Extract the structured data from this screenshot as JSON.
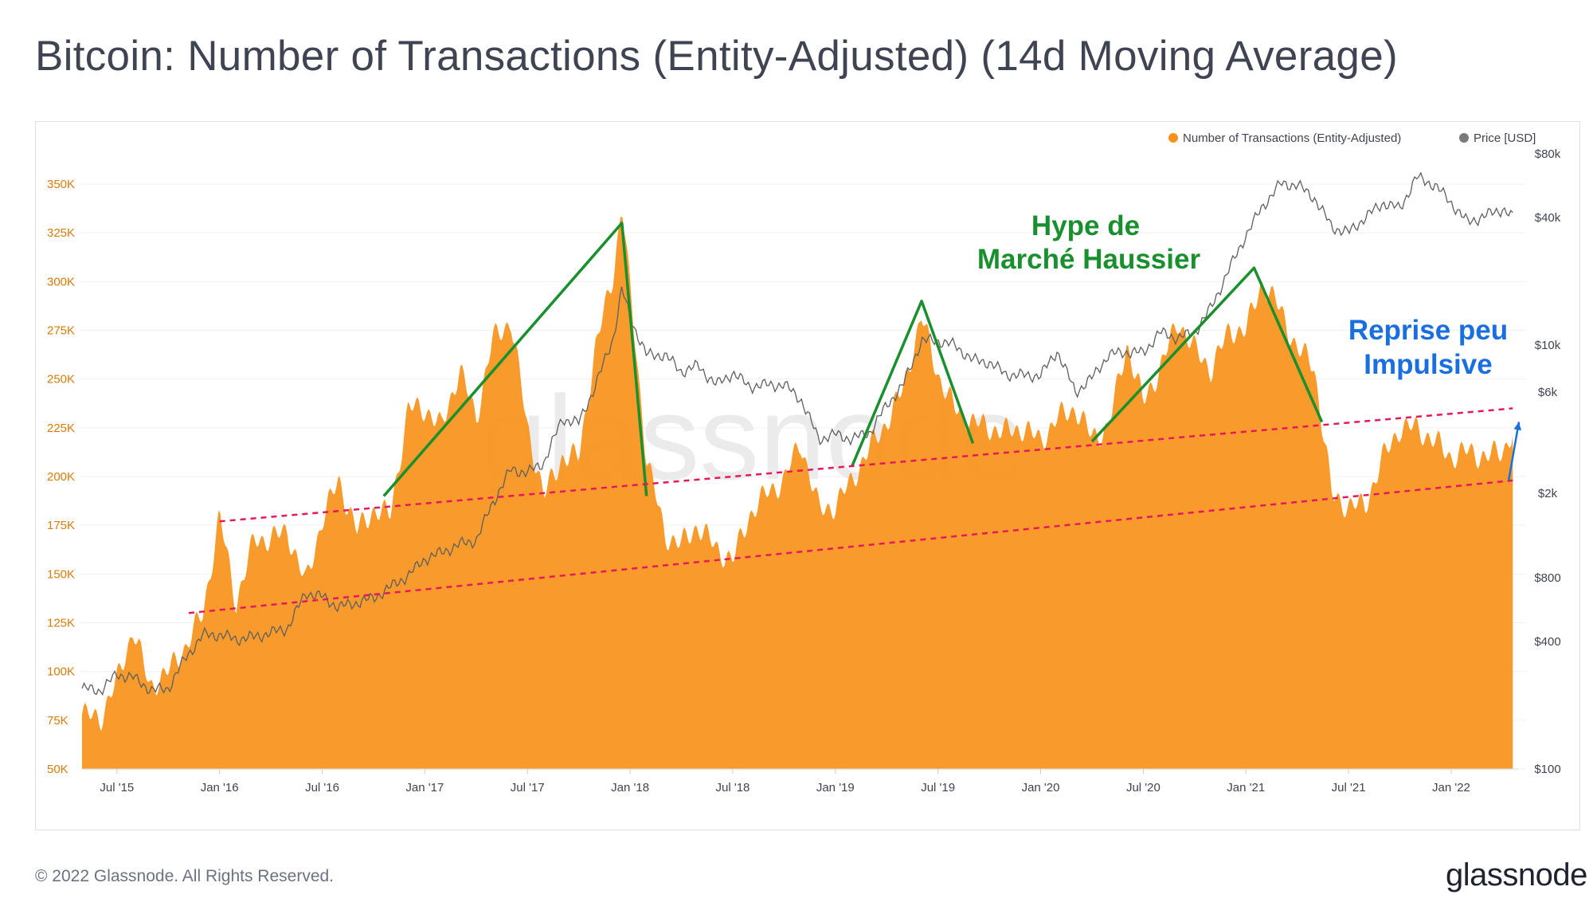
{
  "title": "Bitcoin: Number of Transactions (Entity-Adjusted) (14d Moving Average)",
  "footer": {
    "copyright": "© 2022 Glassnode. All Rights Reserved.",
    "brand": "glassnode"
  },
  "watermark": "glassnode",
  "colors": {
    "tx": "#f7931a",
    "price": "#6e6e6e",
    "trend_green": "#1a8f2d",
    "dashed": "#e8175d",
    "annotation_blue": "#1a6fe0",
    "axis_left": "#d97b0a"
  },
  "chart_data": {
    "type": "area",
    "title": "Bitcoin: Number of Transactions (Entity-Adjusted) (14d Moving Average)",
    "x_range": [
      "2015-05",
      "2022-05"
    ],
    "x_ticks": [
      "Jul '15",
      "Jan '16",
      "Jul '16",
      "Jan '17",
      "Jul '17",
      "Jan '18",
      "Jul '18",
      "Jan '19",
      "Jul '19",
      "Jan '20",
      "Jul '20",
      "Jan '21",
      "Jul '21",
      "Jan '22"
    ],
    "y_left": {
      "label": "Number of Transactions (Entity-Adjusted)",
      "min": 50000,
      "max": 350000,
      "ticks": [
        "50K",
        "75K",
        "100K",
        "125K",
        "150K",
        "175K",
        "200K",
        "225K",
        "250K",
        "275K",
        "300K",
        "325K",
        "350K"
      ]
    },
    "y_right": {
      "label": "Price [USD]",
      "scale": "log",
      "min": 100,
      "max": 80000,
      "ticks": [
        "$100",
        "$400",
        "$800",
        "$2k",
        "$6k",
        "$10k",
        "$40k",
        "$80k"
      ]
    },
    "legend": [
      {
        "name": "Number of Transactions (Entity-Adjusted)"
      },
      {
        "name": "Price [USD]"
      }
    ],
    "series": [
      {
        "name": "Number of Transactions (Entity-Adjusted)",
        "points": [
          [
            2015.33,
            78000
          ],
          [
            2015.42,
            76000
          ],
          [
            2015.5,
            95000
          ],
          [
            2015.58,
            122000
          ],
          [
            2015.66,
            92000
          ],
          [
            2015.75,
            100000
          ],
          [
            2015.83,
            112000
          ],
          [
            2015.92,
            130000
          ],
          [
            2016.0,
            180000
          ],
          [
            2016.08,
            135000
          ],
          [
            2016.17,
            168000
          ],
          [
            2016.25,
            168000
          ],
          [
            2016.33,
            172000
          ],
          [
            2016.42,
            145000
          ],
          [
            2016.5,
            178000
          ],
          [
            2016.58,
            198000
          ],
          [
            2016.67,
            172000
          ],
          [
            2016.75,
            183000
          ],
          [
            2016.83,
            180000
          ],
          [
            2016.92,
            235000
          ],
          [
            2017.0,
            235000
          ],
          [
            2017.08,
            225000
          ],
          [
            2017.17,
            255000
          ],
          [
            2017.25,
            230000
          ],
          [
            2017.33,
            270000
          ],
          [
            2017.42,
            280000
          ],
          [
            2017.5,
            225000
          ],
          [
            2017.58,
            190000
          ],
          [
            2017.67,
            210000
          ],
          [
            2017.75,
            210000
          ],
          [
            2017.83,
            265000
          ],
          [
            2017.92,
            305000
          ],
          [
            2017.96,
            340000
          ],
          [
            2018.0,
            295000
          ],
          [
            2018.08,
            210000
          ],
          [
            2018.17,
            170000
          ],
          [
            2018.25,
            165000
          ],
          [
            2018.33,
            175000
          ],
          [
            2018.42,
            163000
          ],
          [
            2018.5,
            157000
          ],
          [
            2018.58,
            180000
          ],
          [
            2018.67,
            192000
          ],
          [
            2018.75,
            198000
          ],
          [
            2018.83,
            218000
          ],
          [
            2018.92,
            183000
          ],
          [
            2019.0,
            185000
          ],
          [
            2019.08,
            198000
          ],
          [
            2019.17,
            215000
          ],
          [
            2019.25,
            228000
          ],
          [
            2019.33,
            245000
          ],
          [
            2019.42,
            282000
          ],
          [
            2019.5,
            252000
          ],
          [
            2019.58,
            235000
          ],
          [
            2019.67,
            228000
          ],
          [
            2019.75,
            225000
          ],
          [
            2019.83,
            223000
          ],
          [
            2019.92,
            225000
          ],
          [
            2020.0,
            218000
          ],
          [
            2020.08,
            230000
          ],
          [
            2020.17,
            235000
          ],
          [
            2020.25,
            220000
          ],
          [
            2020.33,
            225000
          ],
          [
            2020.42,
            268000
          ],
          [
            2020.5,
            238000
          ],
          [
            2020.58,
            255000
          ],
          [
            2020.67,
            280000
          ],
          [
            2020.75,
            265000
          ],
          [
            2020.83,
            255000
          ],
          [
            2020.92,
            275000
          ],
          [
            2021.0,
            275000
          ],
          [
            2021.08,
            300000
          ],
          [
            2021.17,
            285000
          ],
          [
            2021.25,
            265000
          ],
          [
            2021.33,
            258000
          ],
          [
            2021.42,
            190000
          ],
          [
            2021.5,
            185000
          ],
          [
            2021.58,
            185000
          ],
          [
            2021.67,
            210000
          ],
          [
            2021.75,
            225000
          ],
          [
            2021.83,
            225000
          ],
          [
            2021.92,
            218000
          ],
          [
            2022.0,
            210000
          ],
          [
            2022.08,
            213000
          ],
          [
            2022.17,
            210000
          ],
          [
            2022.25,
            213000
          ],
          [
            2022.3,
            223000
          ]
        ]
      },
      {
        "name": "Price [USD]",
        "points": [
          [
            2015.33,
            240
          ],
          [
            2015.42,
            235
          ],
          [
            2015.5,
            280
          ],
          [
            2015.58,
            270
          ],
          [
            2015.67,
            235
          ],
          [
            2015.75,
            240
          ],
          [
            2015.83,
            330
          ],
          [
            2015.92,
            430
          ],
          [
            2016.0,
            430
          ],
          [
            2016.08,
            410
          ],
          [
            2016.17,
            420
          ],
          [
            2016.25,
            440
          ],
          [
            2016.33,
            460
          ],
          [
            2016.42,
            680
          ],
          [
            2016.5,
            650
          ],
          [
            2016.58,
            580
          ],
          [
            2016.67,
            610
          ],
          [
            2016.75,
            640
          ],
          [
            2016.83,
            720
          ],
          [
            2016.92,
            820
          ],
          [
            2017.0,
            980
          ],
          [
            2017.08,
            1050
          ],
          [
            2017.17,
            1150
          ],
          [
            2017.25,
            1200
          ],
          [
            2017.33,
            1800
          ],
          [
            2017.42,
            2600
          ],
          [
            2017.5,
            2500
          ],
          [
            2017.58,
            2800
          ],
          [
            2017.67,
            4500
          ],
          [
            2017.75,
            4300
          ],
          [
            2017.83,
            6400
          ],
          [
            2017.92,
            11000
          ],
          [
            2017.96,
            18500
          ],
          [
            2018.0,
            13500
          ],
          [
            2018.08,
            9000
          ],
          [
            2018.17,
            9000
          ],
          [
            2018.25,
            7500
          ],
          [
            2018.33,
            8000
          ],
          [
            2018.42,
            6500
          ],
          [
            2018.5,
            7400
          ],
          [
            2018.58,
            6400
          ],
          [
            2018.67,
            6500
          ],
          [
            2018.75,
            6500
          ],
          [
            2018.83,
            5600
          ],
          [
            2018.92,
            3600
          ],
          [
            2019.0,
            3800
          ],
          [
            2019.08,
            3600
          ],
          [
            2019.17,
            3900
          ],
          [
            2019.25,
            5200
          ],
          [
            2019.33,
            6500
          ],
          [
            2019.42,
            10500
          ],
          [
            2019.5,
            10500
          ],
          [
            2019.58,
            10000
          ],
          [
            2019.67,
            8500
          ],
          [
            2019.75,
            8300
          ],
          [
            2019.83,
            7300
          ],
          [
            2019.92,
            7200
          ],
          [
            2020.0,
            7200
          ],
          [
            2020.08,
            9400
          ],
          [
            2020.17,
            6000
          ],
          [
            2020.25,
            7000
          ],
          [
            2020.33,
            9000
          ],
          [
            2020.42,
            9300
          ],
          [
            2020.5,
            9200
          ],
          [
            2020.58,
            11500
          ],
          [
            2020.67,
            10800
          ],
          [
            2020.75,
            11500
          ],
          [
            2020.83,
            15000
          ],
          [
            2020.92,
            23000
          ],
          [
            2021.0,
            33000
          ],
          [
            2021.08,
            45000
          ],
          [
            2021.17,
            58000
          ],
          [
            2021.25,
            57000
          ],
          [
            2021.33,
            50000
          ],
          [
            2021.42,
            36000
          ],
          [
            2021.5,
            34000
          ],
          [
            2021.58,
            40000
          ],
          [
            2021.67,
            47000
          ],
          [
            2021.75,
            44000
          ],
          [
            2021.83,
            62000
          ],
          [
            2021.92,
            57000
          ],
          [
            2022.0,
            47000
          ],
          [
            2022.08,
            38000
          ],
          [
            2022.17,
            41000
          ],
          [
            2022.25,
            44000
          ],
          [
            2022.3,
            40000
          ]
        ]
      }
    ],
    "annotations": [
      {
        "text": "Hype de",
        "color": "green"
      },
      {
        "text": "Marché Haussier",
        "color": "green"
      },
      {
        "text": "Reprise peu",
        "color": "blue"
      },
      {
        "text": "Impulsive",
        "color": "blue"
      }
    ],
    "trend_lines": [
      {
        "color": "green",
        "points": [
          [
            2016.8,
            190000
          ],
          [
            2017.96,
            330000
          ],
          [
            2018.08,
            190000
          ]
        ]
      },
      {
        "color": "green",
        "points": [
          [
            2019.08,
            205000
          ],
          [
            2019.42,
            290000
          ],
          [
            2019.67,
            217000
          ]
        ]
      },
      {
        "color": "green",
        "points": [
          [
            2020.25,
            218000
          ],
          [
            2021.04,
            307000
          ],
          [
            2021.37,
            228000
          ]
        ]
      },
      {
        "color": "dashed",
        "points": [
          [
            2016.0,
            177000
          ],
          [
            2022.3,
            235000
          ]
        ]
      },
      {
        "color": "dashed",
        "points": [
          [
            2015.85,
            130000
          ],
          [
            2022.3,
            198000
          ]
        ]
      },
      {
        "color": "blue-arrow",
        "points": [
          [
            2022.28,
            198000
          ],
          [
            2022.33,
            228000
          ]
        ]
      }
    ]
  }
}
